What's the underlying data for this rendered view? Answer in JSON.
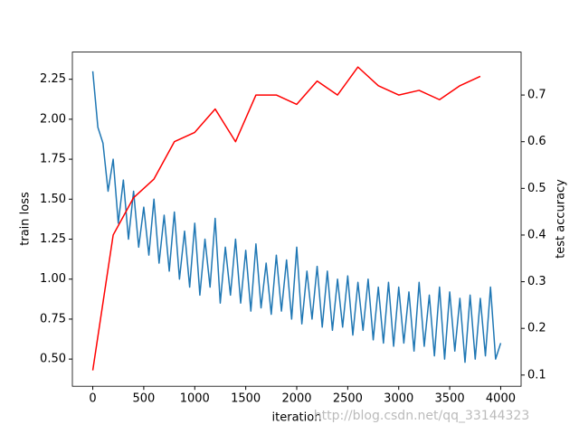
{
  "chart_data": {
    "type": "line",
    "xlabel": "iteration",
    "ylabel": "train loss",
    "y2label": "test accuracy",
    "watermark": "http://blog.csdn.net/qq_33144323",
    "xlim": [
      -200,
      4200
    ],
    "xticks": [
      0,
      500,
      1000,
      1500,
      2000,
      2500,
      3000,
      3500,
      4000
    ],
    "ylim": [
      0.33,
      2.42
    ],
    "yticks": [
      {
        "value": 0.5,
        "label": "0.50"
      },
      {
        "value": 0.75,
        "label": "0.75"
      },
      {
        "value": 1.0,
        "label": "1.00"
      },
      {
        "value": 1.25,
        "label": "1.25"
      },
      {
        "value": 1.5,
        "label": "1.50"
      },
      {
        "value": 1.75,
        "label": "1.75"
      },
      {
        "value": 2.0,
        "label": "2.00"
      },
      {
        "value": 2.25,
        "label": "2.25"
      }
    ],
    "y2lim": [
      0.076,
      0.792
    ],
    "y2ticks": [
      0.1,
      0.2,
      0.3,
      0.4,
      0.5,
      0.6,
      0.7
    ],
    "series": [
      {
        "name": "train loss",
        "color": "#1f77b4",
        "axis": "y",
        "x": [
          0,
          50,
          100,
          150,
          200,
          250,
          300,
          350,
          400,
          450,
          500,
          550,
          600,
          650,
          700,
          750,
          800,
          850,
          900,
          950,
          1000,
          1050,
          1100,
          1150,
          1200,
          1250,
          1300,
          1350,
          1400,
          1450,
          1500,
          1550,
          1600,
          1650,
          1700,
          1750,
          1800,
          1850,
          1900,
          1950,
          2000,
          2050,
          2100,
          2150,
          2200,
          2250,
          2300,
          2350,
          2400,
          2450,
          2500,
          2550,
          2600,
          2650,
          2700,
          2750,
          2800,
          2850,
          2900,
          2950,
          3000,
          3050,
          3100,
          3150,
          3200,
          3250,
          3300,
          3350,
          3400,
          3450,
          3500,
          3550,
          3600,
          3650,
          3700,
          3750,
          3800,
          3850,
          3900,
          3950,
          4000
        ],
        "values": [
          2.3,
          1.95,
          1.85,
          1.55,
          1.75,
          1.35,
          1.62,
          1.25,
          1.55,
          1.2,
          1.45,
          1.15,
          1.5,
          1.1,
          1.4,
          1.05,
          1.42,
          1.0,
          1.3,
          0.95,
          1.35,
          0.9,
          1.25,
          0.95,
          1.38,
          0.85,
          1.2,
          0.9,
          1.25,
          0.85,
          1.18,
          0.8,
          1.22,
          0.82,
          1.1,
          0.78,
          1.15,
          0.8,
          1.12,
          0.75,
          1.2,
          0.72,
          1.05,
          0.75,
          1.08,
          0.7,
          1.05,
          0.68,
          1.0,
          0.7,
          1.02,
          0.65,
          0.98,
          0.68,
          1.0,
          0.62,
          0.95,
          0.6,
          0.98,
          0.58,
          0.95,
          0.6,
          0.92,
          0.55,
          0.98,
          0.58,
          0.9,
          0.52,
          0.95,
          0.5,
          0.92,
          0.55,
          0.88,
          0.48,
          0.9,
          0.5,
          0.88,
          0.52,
          0.95,
          0.5,
          0.6
        ]
      },
      {
        "name": "test accuracy",
        "color": "#ff0000",
        "axis": "y2",
        "x": [
          0,
          200,
          400,
          600,
          800,
          1000,
          1200,
          1400,
          1600,
          1800,
          2000,
          2200,
          2400,
          2600,
          2800,
          3000,
          3200,
          3400,
          3600,
          3800
        ],
        "values": [
          0.11,
          0.4,
          0.48,
          0.52,
          0.6,
          0.62,
          0.67,
          0.6,
          0.7,
          0.7,
          0.68,
          0.73,
          0.7,
          0.76,
          0.72,
          0.7,
          0.71,
          0.69,
          0.72,
          0.74
        ]
      }
    ]
  }
}
